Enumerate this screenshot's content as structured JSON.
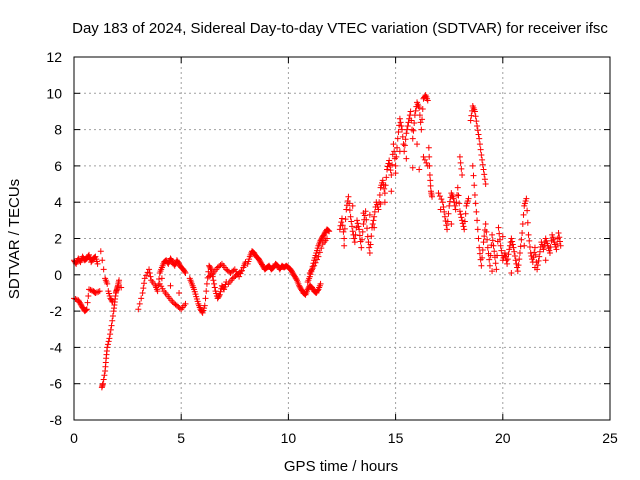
{
  "chart_data": {
    "type": "scatter",
    "title": "Day 183 of 2024, Sidereal Day-to-day VTEC variation (SDTVAR) for receiver ifsc",
    "xlabel": "GPS time / hours",
    "ylabel": "SDTVAR / TECUs",
    "xlim": [
      0,
      25
    ],
    "ylim": [
      -8,
      12
    ],
    "xticks": [
      0,
      5,
      10,
      15,
      20,
      25
    ],
    "yticks": [
      -8,
      -6,
      -4,
      -2,
      0,
      2,
      4,
      6,
      8,
      10,
      12
    ],
    "grid": true,
    "marker": "+",
    "color": "#ff0000",
    "series": [
      {
        "name": "SDTVAR",
        "points": [
          [
            0.0,
            0.8
          ],
          [
            0.1,
            0.6
          ],
          [
            0.2,
            0.9
          ],
          [
            0.3,
            0.7
          ],
          [
            0.4,
            1.0
          ],
          [
            0.5,
            0.8
          ],
          [
            0.6,
            0.9
          ],
          [
            0.7,
            1.1
          ],
          [
            0.8,
            0.7
          ],
          [
            0.9,
            0.9
          ],
          [
            1.0,
            1.0
          ],
          [
            1.1,
            0.6
          ],
          [
            0.0,
            -1.3
          ],
          [
            0.2,
            -1.4
          ],
          [
            0.3,
            -1.6
          ],
          [
            0.4,
            -1.8
          ],
          [
            0.5,
            -2.0
          ],
          [
            0.6,
            -1.9
          ],
          [
            0.7,
            -0.8
          ],
          [
            0.9,
            -0.9
          ],
          [
            1.0,
            -1.0
          ],
          [
            1.2,
            -0.9
          ],
          [
            1.3,
            -6.2
          ],
          [
            1.35,
            -6.0
          ],
          [
            1.45,
            -5.3
          ],
          [
            1.5,
            -4.6
          ],
          [
            1.55,
            -4.0
          ],
          [
            1.65,
            -3.5
          ],
          [
            1.75,
            -2.8
          ],
          [
            1.85,
            -2.0
          ],
          [
            1.9,
            -1.5
          ],
          [
            1.95,
            -1.0
          ],
          [
            2.0,
            -0.8
          ],
          [
            2.05,
            -0.6
          ],
          [
            2.1,
            -0.3
          ],
          [
            1.6,
            -0.9
          ],
          [
            1.7,
            -1.3
          ],
          [
            1.8,
            -1.5
          ],
          [
            1.25,
            1.3
          ],
          [
            1.45,
            -0.2
          ],
          [
            1.55,
            -0.5
          ],
          [
            2.2,
            -0.7
          ],
          [
            3.0,
            -1.9
          ],
          [
            3.2,
            -1.0
          ],
          [
            3.3,
            -0.2
          ],
          [
            3.5,
            0.3
          ],
          [
            3.6,
            -0.3
          ],
          [
            3.8,
            -0.6
          ],
          [
            3.9,
            -0.9
          ],
          [
            4.0,
            0.1
          ],
          [
            4.1,
            0.4
          ],
          [
            4.2,
            0.7
          ],
          [
            4.3,
            0.8
          ],
          [
            4.4,
            0.6
          ],
          [
            4.5,
            0.9
          ],
          [
            4.6,
            0.7
          ],
          [
            4.7,
            0.5
          ],
          [
            4.8,
            0.8
          ],
          [
            4.9,
            0.6
          ],
          [
            5.0,
            0.4
          ],
          [
            5.1,
            0.3
          ],
          [
            5.2,
            0.1
          ],
          [
            4.0,
            -0.5
          ],
          [
            4.2,
            -0.9
          ],
          [
            4.4,
            -1.2
          ],
          [
            4.6,
            -1.5
          ],
          [
            4.8,
            -1.7
          ],
          [
            5.0,
            -1.9
          ],
          [
            5.2,
            -1.6
          ],
          [
            4.1,
            -0.2
          ],
          [
            4.5,
            -0.6
          ],
          [
            4.9,
            -1.0
          ],
          [
            5.4,
            -0.2
          ],
          [
            5.5,
            -0.5
          ],
          [
            5.6,
            -0.8
          ],
          [
            5.7,
            -1.2
          ],
          [
            5.8,
            -1.6
          ],
          [
            5.9,
            -1.9
          ],
          [
            6.0,
            -2.1
          ],
          [
            6.1,
            -1.7
          ],
          [
            6.2,
            -0.5
          ],
          [
            6.3,
            0.5
          ],
          [
            6.4,
            0.3
          ],
          [
            6.5,
            -0.3
          ],
          [
            6.6,
            -0.9
          ],
          [
            6.7,
            -1.3
          ],
          [
            6.8,
            -1.1
          ],
          [
            6.9,
            -0.6
          ],
          [
            7.0,
            -0.8
          ],
          [
            7.1,
            -0.4
          ],
          [
            6.3,
            -0.1
          ],
          [
            6.5,
            0.1
          ],
          [
            6.7,
            0.4
          ],
          [
            6.9,
            0.6
          ],
          [
            7.1,
            0.3
          ],
          [
            7.3,
            0.1
          ],
          [
            7.5,
            0.3
          ],
          [
            7.7,
            -0.1
          ],
          [
            7.9,
            0.4
          ],
          [
            8.0,
            0.7
          ],
          [
            7.2,
            -0.5
          ],
          [
            7.4,
            -0.2
          ],
          [
            7.6,
            0.0
          ],
          [
            7.8,
            0.2
          ],
          [
            8.1,
            0.6
          ],
          [
            8.2,
            1.0
          ],
          [
            8.3,
            1.3
          ],
          [
            8.4,
            1.2
          ],
          [
            8.5,
            1.0
          ],
          [
            8.6,
            0.9
          ],
          [
            8.7,
            0.7
          ],
          [
            8.8,
            0.5
          ],
          [
            8.9,
            0.3
          ],
          [
            9.0,
            0.4
          ],
          [
            9.1,
            0.5
          ],
          [
            9.2,
            0.3
          ],
          [
            9.3,
            0.4
          ],
          [
            9.4,
            0.6
          ],
          [
            9.5,
            0.5
          ],
          [
            9.6,
            0.3
          ],
          [
            9.7,
            0.5
          ],
          [
            9.8,
            0.4
          ],
          [
            9.9,
            0.5
          ],
          [
            10.0,
            0.4
          ],
          [
            10.1,
            0.3
          ],
          [
            10.2,
            0.1
          ],
          [
            10.3,
            -0.1
          ],
          [
            10.4,
            -0.3
          ],
          [
            10.5,
            -0.6
          ],
          [
            10.6,
            -0.8
          ],
          [
            10.7,
            -1.0
          ],
          [
            10.8,
            -1.1
          ],
          [
            10.9,
            -0.8
          ],
          [
            11.0,
            -0.6
          ],
          [
            11.1,
            -0.7
          ],
          [
            11.2,
            -0.9
          ],
          [
            11.3,
            -1.0
          ],
          [
            11.4,
            -0.8
          ],
          [
            11.5,
            -0.5
          ],
          [
            10.9,
            -0.4
          ],
          [
            11.0,
            -0.1
          ],
          [
            11.1,
            0.3
          ],
          [
            11.2,
            0.8
          ],
          [
            11.3,
            1.2
          ],
          [
            11.4,
            1.6
          ],
          [
            11.5,
            1.9
          ],
          [
            11.6,
            2.1
          ],
          [
            11.7,
            2.3
          ],
          [
            11.8,
            2.5
          ],
          [
            11.9,
            2.4
          ],
          [
            11.0,
            0.1
          ],
          [
            11.2,
            0.5
          ],
          [
            11.4,
            1.0
          ],
          [
            11.6,
            1.7
          ],
          [
            11.8,
            2.0
          ],
          [
            12.4,
            2.5
          ],
          [
            12.5,
            3.1
          ],
          [
            12.6,
            2.0
          ],
          [
            12.7,
            3.6
          ],
          [
            12.8,
            4.3
          ],
          [
            12.9,
            3.2
          ],
          [
            13.0,
            2.4
          ],
          [
            13.1,
            1.8
          ],
          [
            13.2,
            3.0
          ],
          [
            13.3,
            2.5
          ],
          [
            13.4,
            1.5
          ],
          [
            13.5,
            2.8
          ],
          [
            13.6,
            3.5
          ],
          [
            13.7,
            2.1
          ],
          [
            13.8,
            1.2
          ],
          [
            13.9,
            2.6
          ],
          [
            14.0,
            3.2
          ],
          [
            14.1,
            4.0
          ],
          [
            14.2,
            3.6
          ],
          [
            14.3,
            4.8
          ],
          [
            14.4,
            5.2
          ],
          [
            14.5,
            4.5
          ],
          [
            14.6,
            5.8
          ],
          [
            14.7,
            6.3
          ],
          [
            14.8,
            5.5
          ],
          [
            14.9,
            7.2
          ],
          [
            15.0,
            6.0
          ],
          [
            15.1,
            7.5
          ],
          [
            15.2,
            8.6
          ],
          [
            15.3,
            8.0
          ],
          [
            15.4,
            6.8
          ],
          [
            15.5,
            7.8
          ],
          [
            15.6,
            8.4
          ],
          [
            15.7,
            9.0
          ],
          [
            15.8,
            7.5
          ],
          [
            15.9,
            8.8
          ],
          [
            16.0,
            9.5
          ],
          [
            16.1,
            9.2
          ],
          [
            16.2,
            8.0
          ],
          [
            16.3,
            9.7
          ],
          [
            16.4,
            9.9
          ],
          [
            16.5,
            9.6
          ],
          [
            16.55,
            7.0
          ],
          [
            16.6,
            5.5
          ],
          [
            16.65,
            4.6
          ],
          [
            16.7,
            4.3
          ],
          [
            13.0,
            3.8
          ],
          [
            13.5,
            3.4
          ],
          [
            14.0,
            2.6
          ],
          [
            14.5,
            4.0
          ],
          [
            15.0,
            5.6
          ],
          [
            15.5,
            6.4
          ],
          [
            16.0,
            7.2
          ],
          [
            16.3,
            6.5
          ],
          [
            16.5,
            6.0
          ],
          [
            15.8,
            5.9
          ],
          [
            14.8,
            4.6
          ],
          [
            15.2,
            6.8
          ],
          [
            16.1,
            5.8
          ],
          [
            13.8,
            3.3
          ],
          [
            14.3,
            3.9
          ],
          [
            12.6,
            1.6
          ],
          [
            17.0,
            4.5
          ],
          [
            17.2,
            4.0
          ],
          [
            17.3,
            3.2
          ],
          [
            17.4,
            2.5
          ],
          [
            17.5,
            3.8
          ],
          [
            17.6,
            4.5
          ],
          [
            17.7,
            4.2
          ],
          [
            17.8,
            3.6
          ],
          [
            17.9,
            4.8
          ],
          [
            18.0,
            3.5
          ],
          [
            18.1,
            3.0
          ],
          [
            18.2,
            2.5
          ],
          [
            18.3,
            3.8
          ],
          [
            18.4,
            4.2
          ],
          [
            17.1,
            3.6
          ],
          [
            17.6,
            2.8
          ],
          [
            18.0,
            6.5
          ],
          [
            18.1,
            5.5
          ],
          [
            18.5,
            8.5
          ],
          [
            18.6,
            9.3
          ],
          [
            18.7,
            9.0
          ],
          [
            18.8,
            8.2
          ],
          [
            18.9,
            7.5
          ],
          [
            19.0,
            6.6
          ],
          [
            19.1,
            5.8
          ],
          [
            19.2,
            5.0
          ],
          [
            18.6,
            6.0
          ],
          [
            18.7,
            4.4
          ],
          [
            18.8,
            3.0
          ],
          [
            18.9,
            1.5
          ],
          [
            19.0,
            0.5
          ],
          [
            19.1,
            1.8
          ],
          [
            19.2,
            2.8
          ],
          [
            19.3,
            1.5
          ],
          [
            19.4,
            0.5
          ],
          [
            19.5,
            2.2
          ],
          [
            19.6,
            1.3
          ],
          [
            19.7,
            0.3
          ],
          [
            19.8,
            2.6
          ],
          [
            19.9,
            1.6
          ],
          [
            20.0,
            0.8
          ],
          [
            20.1,
            1.2
          ],
          [
            20.2,
            0.6
          ],
          [
            20.3,
            1.4
          ],
          [
            20.4,
            2.0
          ],
          [
            20.5,
            1.5
          ],
          [
            20.6,
            0.8
          ],
          [
            20.7,
            0.2
          ],
          [
            20.8,
            1.2
          ],
          [
            20.9,
            2.3
          ],
          [
            21.0,
            3.8
          ],
          [
            21.1,
            4.2
          ],
          [
            21.2,
            2.2
          ],
          [
            21.3,
            1.2
          ],
          [
            21.4,
            0.7
          ],
          [
            21.5,
            1.5
          ],
          [
            21.6,
            0.3
          ],
          [
            21.7,
            1.0
          ],
          [
            21.8,
            1.8
          ],
          [
            21.9,
            1.4
          ],
          [
            22.0,
            2.0
          ],
          [
            22.1,
            1.6
          ],
          [
            22.2,
            1.2
          ],
          [
            22.3,
            2.2
          ],
          [
            22.4,
            1.8
          ],
          [
            22.5,
            1.4
          ],
          [
            22.6,
            2.3
          ],
          [
            22.7,
            1.6
          ],
          [
            19.5,
            0.2
          ],
          [
            20.0,
            2.1
          ],
          [
            20.4,
            0.1
          ],
          [
            21.0,
            1.6
          ],
          [
            21.5,
            0.4
          ],
          [
            22.0,
            0.8
          ]
        ]
      }
    ]
  }
}
